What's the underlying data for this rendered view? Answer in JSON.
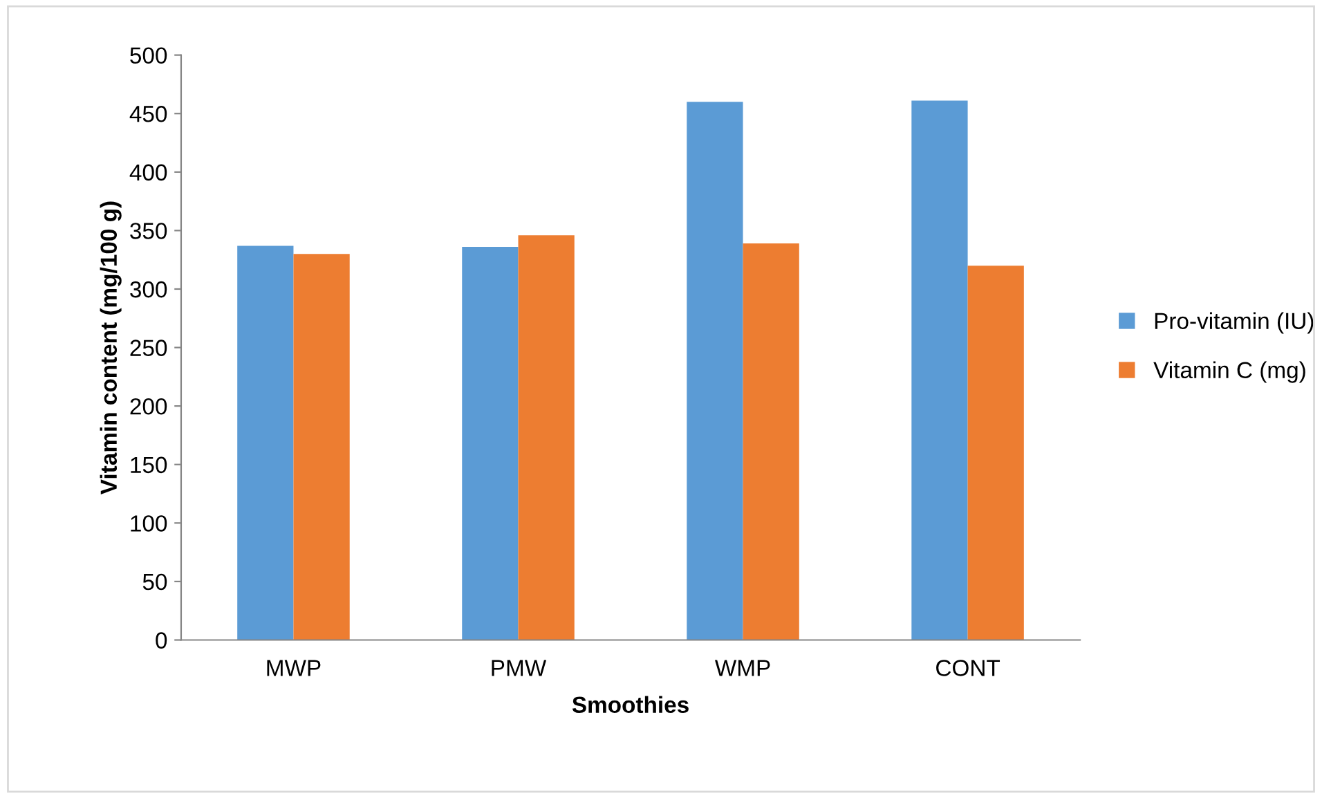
{
  "chart_data": {
    "type": "bar",
    "xlabel": "Smoothies",
    "ylabel": "Vitamin content (mg/100 g)",
    "categories": [
      "MWP",
      "PMW",
      "WMP",
      "CONT"
    ],
    "series": [
      {
        "name": "Pro-vitamin (IU)",
        "color": "#5b9bd5",
        "values": [
          337,
          336,
          460,
          461
        ]
      },
      {
        "name": "Vitamin C (mg)",
        "color": "#ed7d31",
        "values": [
          330,
          346,
          339,
          320
        ]
      }
    ],
    "ylim": [
      0,
      500
    ],
    "yticks": [
      0,
      50,
      100,
      150,
      200,
      250,
      300,
      350,
      400,
      450,
      500
    ],
    "grid": false,
    "legend": "right"
  }
}
